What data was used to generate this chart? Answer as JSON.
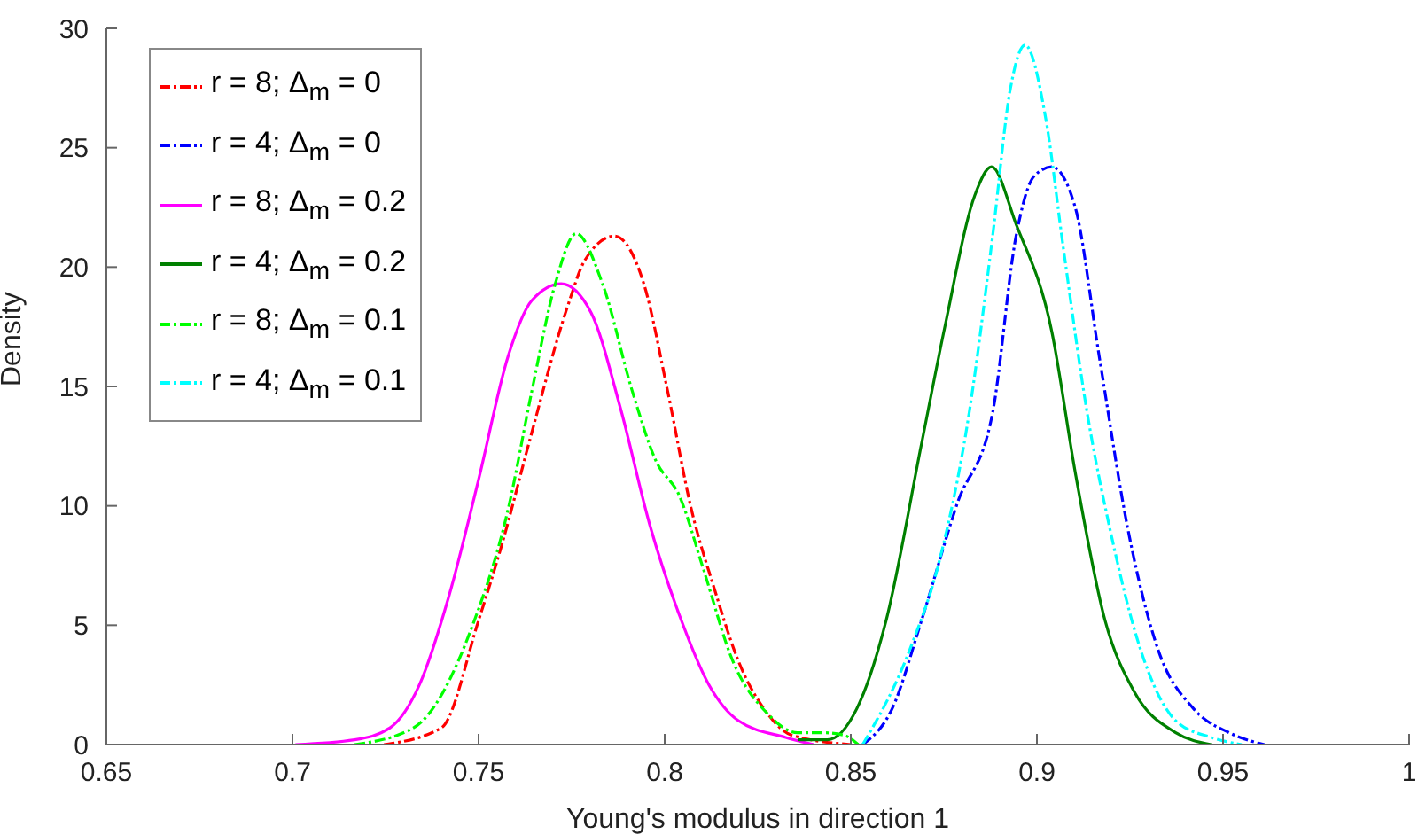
{
  "chart_data": {
    "type": "line",
    "xlabel": "Young's modulus in direction 1",
    "ylabel": "Density",
    "xlim": [
      0.65,
      1
    ],
    "xticks": [
      0.65,
      0.7,
      0.75,
      0.8,
      0.85,
      0.9,
      0.95,
      1
    ],
    "ylim": [
      0,
      30
    ],
    "yticks": [
      0,
      5,
      10,
      15,
      20,
      25,
      30
    ],
    "grid": false,
    "legend": "top left",
    "series": [
      {
        "name": "r = 8; Δ$_{m}$ = 0",
        "color": "#ff0000",
        "line_style": "dashed",
        "x": [
          0.7246,
          0.74,
          0.75,
          0.7563,
          0.764,
          0.7738,
          0.7786,
          0.7865,
          0.7944,
          0.8008,
          0.8071,
          0.8134,
          0.8198,
          0.8276,
          0.834,
          0.85
        ],
        "values": [
          0,
          0.7,
          5.2,
          8.4,
          12.9,
          18.3,
          20.3,
          21.3,
          19.3,
          14.8,
          9.9,
          6.5,
          3.5,
          1.3,
          0.4,
          0
        ]
      },
      {
        "name": "r = 4; Δ$_{m}$ = 0",
        "color": "#0000ff",
        "line_style": "dashed",
        "x": [
          0.8532,
          0.8611,
          0.869,
          0.8786,
          0.8881,
          0.8944,
          0.8992,
          0.904,
          0.9103,
          0.9167,
          0.9246,
          0.9325,
          0.9421,
          0.9516,
          0.9611
        ],
        "values": [
          0,
          1.5,
          5.2,
          10.1,
          13.9,
          21.3,
          23.8,
          24.2,
          22.5,
          16.3,
          8.9,
          4.0,
          1.5,
          0.5,
          0
        ]
      },
      {
        "name": "r = 8; Δ$_{m}$ = 0.2",
        "color": "#ff00ff",
        "line_style": "solid",
        "x": [
          0.7008,
          0.7167,
          0.7262,
          0.7341,
          0.742,
          0.75,
          0.758,
          0.7643,
          0.7722,
          0.7802,
          0.7881,
          0.796,
          0.804,
          0.8119,
          0.8198,
          0.8325,
          0.84
        ],
        "values": [
          0,
          0.2,
          0.7,
          2.5,
          6.2,
          11.1,
          16.3,
          18.6,
          19.3,
          18.1,
          14.1,
          9.2,
          5.4,
          2.5,
          1.0,
          0.3,
          0
        ]
      },
      {
        "name": "r = 4; Δ$_{m}$ = 0.2",
        "color": "#008000",
        "line_style": "solid",
        "x": [
          0.8357,
          0.8437,
          0.8516,
          0.8595,
          0.869,
          0.8754,
          0.8833,
          0.8878,
          0.8944,
          0.904,
          0.9103,
          0.9183,
          0.9262,
          0.9373,
          0.9468
        ],
        "values": [
          0.2,
          0.2,
          1.5,
          5.2,
          12.6,
          17.6,
          23.0,
          24.2,
          21.8,
          17.3,
          11.4,
          5.2,
          2.2,
          0.5,
          0
        ]
      },
      {
        "name": "r = 8; Δ$_{m}$ = 0.1",
        "color": "#00ff00",
        "line_style": "dashed",
        "x": [
          0.7167,
          0.7325,
          0.7484,
          0.758,
          0.7643,
          0.7706,
          0.7762,
          0.7833,
          0.7913,
          0.7976,
          0.804,
          0.8103,
          0.8183,
          0.8276,
          0.8357,
          0.842,
          0.848,
          0.852
        ],
        "values": [
          0,
          0.7,
          5.0,
          9.9,
          14.8,
          19.3,
          21.4,
          19.3,
          14.8,
          11.9,
          10.4,
          7.4,
          3.5,
          1.3,
          0.5,
          0.5,
          0.4,
          0
        ]
      },
      {
        "name": "r = 4; Δ$_{m}$ = 0.1",
        "color": "#00ffff",
        "line_style": "dashed",
        "x": [
          0.8532,
          0.8659,
          0.8738,
          0.8818,
          0.8881,
          0.8929,
          0.8968,
          0.9024,
          0.9071,
          0.9135,
          0.9198,
          0.9278,
          0.9373,
          0.9468,
          0.955
        ],
        "values": [
          0,
          4.0,
          7.7,
          13.9,
          21.3,
          27.5,
          29.3,
          26.2,
          20.8,
          13.9,
          8.9,
          4.0,
          1.0,
          0.3,
          0
        ]
      }
    ]
  }
}
